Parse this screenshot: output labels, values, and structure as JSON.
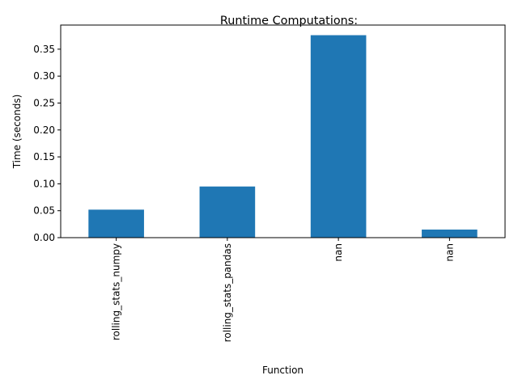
{
  "chart_data": {
    "type": "bar",
    "title": "Runtime Computations:",
    "xlabel": "Function",
    "ylabel": "Time (seconds)",
    "categories": [
      "rolling_stats_numpy",
      "rolling_stats_pandas",
      "nan",
      "nan"
    ],
    "values": [
      0.052,
      0.095,
      0.376,
      0.015
    ],
    "ylim": [
      0,
      0.3948
    ],
    "yticks": [
      0.0,
      0.05,
      0.1,
      0.15,
      0.2,
      0.25,
      0.3,
      0.35
    ],
    "ytick_labels": [
      "0.00",
      "0.05",
      "0.10",
      "0.15",
      "0.20",
      "0.25",
      "0.30",
      "0.35"
    ],
    "bar_color": "#1f77b4",
    "grid": false,
    "legend": false
  }
}
